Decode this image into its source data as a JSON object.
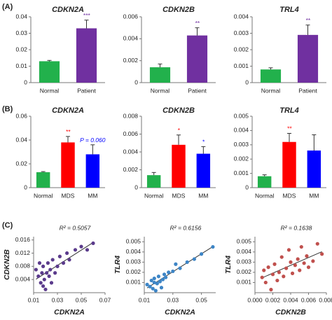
{
  "panels": [
    "(A)",
    "(B)",
    "(C)"
  ],
  "chart_data": [
    {
      "type": "bar",
      "title": "CDKN2A",
      "categories": [
        "Normal",
        "Patient"
      ],
      "values": [
        0.013,
        0.033
      ],
      "errors": [
        0.0005,
        0.005
      ],
      "colors": [
        "#22b14c",
        "#7030a0"
      ],
      "annotations": [
        null,
        {
          "text": "***",
          "color": "#7030a0"
        }
      ],
      "ylim": [
        0,
        0.04
      ],
      "yticks": [
        0,
        0.01,
        0.02,
        0.03,
        0.04
      ]
    },
    {
      "type": "bar",
      "title": "CDKN2B",
      "categories": [
        "Normal",
        "Patient"
      ],
      "values": [
        0.0014,
        0.0043
      ],
      "errors": [
        0.0003,
        0.0007
      ],
      "colors": [
        "#22b14c",
        "#7030a0"
      ],
      "annotations": [
        null,
        {
          "text": "**",
          "color": "#7030a0"
        }
      ],
      "ylim": [
        0,
        0.006
      ],
      "yticks": [
        0,
        0.002,
        0.004,
        0.006
      ]
    },
    {
      "type": "bar",
      "title": "TRL4",
      "categories": [
        "Normal",
        "Patient"
      ],
      "values": [
        0.0008,
        0.0029
      ],
      "errors": [
        0.0001,
        0.0006
      ],
      "colors": [
        "#22b14c",
        "#7030a0"
      ],
      "annotations": [
        null,
        {
          "text": "**",
          "color": "#7030a0"
        }
      ],
      "ylim": [
        0,
        0.004
      ],
      "yticks": [
        0,
        0.001,
        0.002,
        0.003,
        0.004
      ]
    },
    {
      "type": "bar",
      "title": "CDKN2A",
      "categories": [
        "Normal",
        "MDS",
        "MM"
      ],
      "values": [
        0.013,
        0.038,
        0.028
      ],
      "errors": [
        0.0005,
        0.005,
        0.008
      ],
      "colors": [
        "#22b14c",
        "#ff0000",
        "#0000ff"
      ],
      "annotations": [
        null,
        {
          "text": "**",
          "color": "#ff0000"
        },
        {
          "text": "P = 0.060",
          "color": "#0000ff"
        }
      ],
      "ylim": [
        0,
        0.06
      ],
      "yticks": [
        0,
        0.02,
        0.04,
        0.06
      ]
    },
    {
      "type": "bar",
      "title": "CDKN2B",
      "categories": [
        "Normal",
        "MDS",
        "MM"
      ],
      "values": [
        0.0014,
        0.0048,
        0.0038
      ],
      "errors": [
        0.0003,
        0.0011,
        0.0008
      ],
      "colors": [
        "#22b14c",
        "#ff0000",
        "#0000ff"
      ],
      "annotations": [
        null,
        {
          "text": "*",
          "color": "#ff0000"
        },
        {
          "text": "*",
          "color": "#0000ff"
        }
      ],
      "ylim": [
        0,
        0.008
      ],
      "yticks": [
        0,
        0.002,
        0.004,
        0.006,
        0.008
      ]
    },
    {
      "type": "bar",
      "title": "TRL4",
      "categories": [
        "Normal",
        "MDS",
        "MM"
      ],
      "values": [
        0.0008,
        0.0032,
        0.0026
      ],
      "errors": [
        0.0001,
        0.0006,
        0.0011
      ],
      "colors": [
        "#22b14c",
        "#ff0000",
        "#0000ff"
      ],
      "annotations": [
        null,
        {
          "text": "**",
          "color": "#ff0000"
        },
        null
      ],
      "ylim": [
        0,
        0.005
      ],
      "yticks": [
        0,
        0.001,
        0.002,
        0.003,
        0.004,
        0.005
      ]
    },
    {
      "type": "scatter",
      "annotation": "R² = 0.5057",
      "xlabel": "CDKN2A",
      "ylabel": "CDKN2B",
      "color": "#5b3b8c",
      "trendline": true,
      "x": [
        0.012,
        0.014,
        0.015,
        0.016,
        0.017,
        0.018,
        0.018,
        0.019,
        0.02,
        0.021,
        0.022,
        0.023,
        0.024,
        0.025,
        0.026,
        0.028,
        0.03,
        0.032,
        0.035,
        0.038,
        0.04,
        0.045,
        0.05,
        0.055,
        0.06
      ],
      "values": [
        0.007,
        0.005,
        0.009,
        0.003,
        0.006,
        0.002,
        0.008,
        0.004,
        0.001,
        0.006,
        0.009,
        0.005,
        0.007,
        0.003,
        0.01,
        0.006,
        0.008,
        0.011,
        0.009,
        0.012,
        0.01,
        0.013,
        0.014,
        0.013,
        0.015
      ],
      "xlim": [
        0.01,
        0.07
      ],
      "xticks": [
        0.01,
        0.03,
        0.05,
        0.07
      ],
      "ylim": [
        0,
        0.017
      ],
      "yticks": [
        0.004,
        0.008,
        0.012,
        0.016
      ]
    },
    {
      "type": "scatter",
      "annotation": "R² = 0.6156",
      "xlabel": "CDKN2A",
      "ylabel": "TLR4",
      "color": "#3d85c6",
      "trendline": true,
      "x": [
        0.012,
        0.014,
        0.015,
        0.016,
        0.017,
        0.017,
        0.018,
        0.019,
        0.02,
        0.021,
        0.022,
        0.023,
        0.024,
        0.025,
        0.027,
        0.03,
        0.032,
        0.035,
        0.04,
        0.045,
        0.05,
        0.058
      ],
      "values": [
        0.0008,
        0.0006,
        0.0012,
        0.0004,
        0.001,
        0.0014,
        0.0002,
        0.0009,
        0.0016,
        0.0011,
        0.0005,
        0.0013,
        0.0018,
        0.0015,
        0.002,
        0.0021,
        0.0028,
        0.0024,
        0.003,
        0.0033,
        0.0038,
        0.0045
      ],
      "xlim": [
        0.01,
        0.06
      ],
      "xticks": [
        0.01,
        0.03,
        0.05
      ],
      "ylim": [
        0,
        0.0055
      ],
      "yticks": [
        0.001,
        0.002,
        0.003,
        0.004,
        0.005
      ]
    },
    {
      "type": "scatter",
      "annotation": "R² = 0.1638",
      "xlabel": "CDKN2B",
      "ylabel": "TLR4",
      "color": "#c0504d",
      "trendline": true,
      "x": [
        0.0008,
        0.001,
        0.0012,
        0.0015,
        0.0018,
        0.002,
        0.0022,
        0.0025,
        0.0027,
        0.003,
        0.0032,
        0.0035,
        0.0038,
        0.004,
        0.0042,
        0.0045,
        0.0048,
        0.005,
        0.0052,
        0.0055,
        0.0058,
        0.006,
        0.0065,
        0.007,
        0.0075
      ],
      "values": [
        0.0015,
        0.0022,
        0.001,
        0.0025,
        0.0003,
        0.0018,
        0.0028,
        0.0012,
        0.002,
        0.0035,
        0.0016,
        0.0024,
        0.0042,
        0.003,
        0.0019,
        0.0027,
        0.0033,
        0.0022,
        0.0045,
        0.0029,
        0.0036,
        0.0025,
        0.0031,
        0.0048,
        0.0038
      ],
      "xlim": [
        0,
        0.008
      ],
      "xticks": [
        {
          "value": 0,
          "label": "0.000"
        },
        0.002,
        0.004,
        0.006,
        0.008
      ],
      "ylim": [
        0,
        0.0055
      ],
      "yticks": [
        0.001,
        0.002,
        0.003,
        0.004,
        0.005
      ]
    }
  ]
}
